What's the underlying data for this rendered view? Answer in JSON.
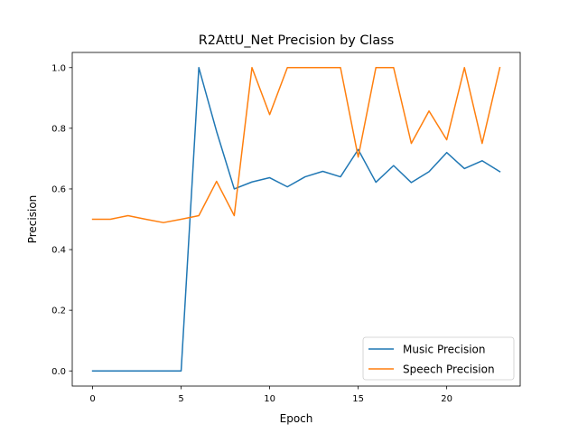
{
  "chart_data": {
    "type": "line",
    "title": "R2AttU_Net Precision by Class",
    "xlabel": "Epoch",
    "ylabel": "Precision",
    "xlim": [
      -1.15,
      24.15
    ],
    "ylim": [
      -0.05,
      1.05
    ],
    "xticks": [
      0,
      5,
      10,
      15,
      20
    ],
    "yticks": [
      0.0,
      0.2,
      0.4,
      0.6,
      0.8,
      1.0
    ],
    "xtick_labels": [
      "0",
      "5",
      "10",
      "15",
      "20"
    ],
    "ytick_labels": [
      "0.0",
      "0.2",
      "0.4",
      "0.6",
      "0.8",
      "1.0"
    ],
    "grid": false,
    "legend_position": "bottom-right",
    "x": [
      0,
      1,
      2,
      3,
      4,
      5,
      6,
      7,
      8,
      9,
      10,
      11,
      12,
      13,
      14,
      15,
      16,
      17,
      18,
      19,
      20,
      21,
      22,
      23
    ],
    "series": [
      {
        "name": "Music Precision",
        "color": "#1f77b4",
        "values": [
          0,
          0,
          0,
          0,
          0,
          0,
          1.0,
          0.79,
          0.6,
          0.623,
          0.637,
          0.607,
          0.64,
          0.658,
          0.64,
          0.73,
          0.622,
          0.677,
          0.621,
          0.657,
          0.72,
          0.667,
          0.693,
          0.657
        ]
      },
      {
        "name": "Speech Precision",
        "color": "#ff7f0e",
        "values": [
          0.5,
          0.5,
          0.512,
          0.5,
          0.489,
          0.5,
          0.512,
          0.625,
          0.512,
          1.0,
          0.845,
          1.0,
          1.0,
          1.0,
          1.0,
          0.705,
          1.0,
          1.0,
          0.75,
          0.857,
          0.762,
          1.0,
          0.75,
          1.0
        ]
      }
    ]
  }
}
